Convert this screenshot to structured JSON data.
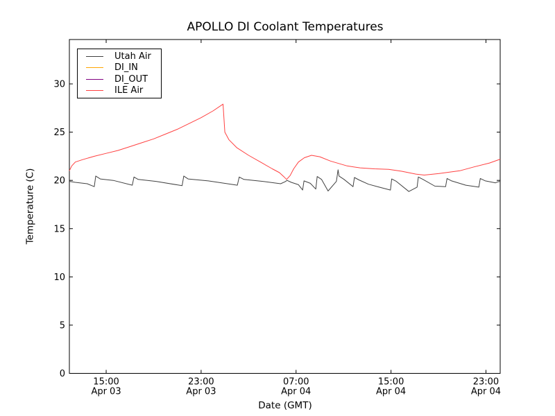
{
  "chart_data": {
    "type": "line",
    "title": "APOLLO DI Coolant Temperatures",
    "xlabel": "Date (GMT)",
    "ylabel": "Temperature (C)",
    "grid": false,
    "legend_position": "upper left",
    "x_unit": "hours since Apr 03 00:00 GMT",
    "x_range": [
      11.9,
      48.2
    ],
    "ylim": [
      0,
      34.6
    ],
    "yticks": [
      0,
      5,
      10,
      15,
      20,
      25,
      30
    ],
    "xticks": [
      {
        "hour": 15,
        "time": "15:00",
        "date": "Apr 03"
      },
      {
        "hour": 23,
        "time": "23:00",
        "date": "Apr 03"
      },
      {
        "hour": 31,
        "time": "07:00",
        "date": "Apr 04"
      },
      {
        "hour": 39,
        "time": "15:00",
        "date": "Apr 04"
      },
      {
        "hour": 47,
        "time": "23:00",
        "date": "Apr 04"
      }
    ],
    "series": [
      {
        "name": "Utah Air",
        "color": "#404040",
        "points": [
          [
            11.9,
            19.9
          ],
          [
            12.4,
            19.8
          ],
          [
            13.4,
            19.65
          ],
          [
            14.0,
            19.35
          ],
          [
            14.12,
            20.45
          ],
          [
            14.5,
            20.15
          ],
          [
            15.6,
            20.0
          ],
          [
            17.2,
            19.5
          ],
          [
            17.34,
            20.35
          ],
          [
            17.7,
            20.1
          ],
          [
            19.2,
            19.9
          ],
          [
            21.4,
            19.45
          ],
          [
            21.54,
            20.45
          ],
          [
            21.9,
            20.15
          ],
          [
            23.6,
            19.95
          ],
          [
            26.05,
            19.5
          ],
          [
            26.21,
            20.35
          ],
          [
            26.6,
            20.1
          ],
          [
            28.2,
            19.9
          ],
          [
            29.7,
            19.65
          ],
          [
            30.05,
            19.85
          ],
          [
            30.25,
            20.0
          ],
          [
            30.6,
            19.8
          ],
          [
            31.2,
            19.55
          ],
          [
            31.55,
            19.0
          ],
          [
            31.67,
            19.95
          ],
          [
            32.2,
            19.7
          ],
          [
            32.66,
            19.1
          ],
          [
            32.78,
            20.4
          ],
          [
            33.15,
            20.1
          ],
          [
            33.7,
            18.9
          ],
          [
            34.4,
            19.9
          ],
          [
            34.54,
            21.1
          ],
          [
            34.62,
            20.45
          ],
          [
            35.05,
            20.1
          ],
          [
            35.8,
            19.35
          ],
          [
            35.92,
            20.3
          ],
          [
            36.3,
            20.05
          ],
          [
            37.1,
            19.6
          ],
          [
            38.0,
            19.3
          ],
          [
            38.95,
            19.0
          ],
          [
            39.06,
            20.15
          ],
          [
            39.45,
            19.9
          ],
          [
            40.5,
            18.85
          ],
          [
            41.2,
            19.3
          ],
          [
            41.3,
            20.35
          ],
          [
            41.7,
            20.1
          ],
          [
            42.7,
            19.4
          ],
          [
            43.6,
            19.35
          ],
          [
            43.72,
            20.2
          ],
          [
            44.1,
            19.95
          ],
          [
            45.3,
            19.5
          ],
          [
            46.4,
            19.3
          ],
          [
            46.52,
            20.2
          ],
          [
            46.95,
            19.95
          ],
          [
            47.8,
            19.75
          ],
          [
            48.0,
            19.85
          ],
          [
            48.2,
            19.9
          ]
        ]
      },
      {
        "name": "DI_IN",
        "color": "#ffa500",
        "points": []
      },
      {
        "name": "DI_OUT",
        "color": "#800080",
        "points": []
      },
      {
        "name": "ILE Air",
        "color": "#ff4040",
        "points": [
          [
            11.9,
            21.0
          ],
          [
            12.1,
            21.5
          ],
          [
            12.4,
            21.9
          ],
          [
            13.0,
            22.15
          ],
          [
            14.0,
            22.5
          ],
          [
            15.0,
            22.8
          ],
          [
            16.0,
            23.1
          ],
          [
            17.0,
            23.5
          ],
          [
            18.0,
            23.9
          ],
          [
            19.0,
            24.3
          ],
          [
            20.0,
            24.8
          ],
          [
            21.0,
            25.3
          ],
          [
            22.0,
            25.9
          ],
          [
            23.0,
            26.5
          ],
          [
            24.0,
            27.2
          ],
          [
            24.85,
            27.9
          ],
          [
            25.0,
            25.0
          ],
          [
            25.35,
            24.2
          ],
          [
            26.0,
            23.4
          ],
          [
            27.0,
            22.6
          ],
          [
            28.0,
            21.9
          ],
          [
            29.0,
            21.2
          ],
          [
            29.6,
            20.8
          ],
          [
            30.0,
            20.35
          ],
          [
            30.2,
            20.1
          ],
          [
            30.5,
            20.5
          ],
          [
            30.8,
            21.2
          ],
          [
            31.2,
            21.9
          ],
          [
            31.7,
            22.35
          ],
          [
            32.3,
            22.6
          ],
          [
            33.0,
            22.45
          ],
          [
            33.9,
            22.0
          ],
          [
            35.3,
            21.5
          ],
          [
            36.4,
            21.3
          ],
          [
            37.6,
            21.2
          ],
          [
            38.8,
            21.15
          ],
          [
            39.9,
            20.95
          ],
          [
            41.1,
            20.65
          ],
          [
            41.8,
            20.55
          ],
          [
            43.0,
            20.7
          ],
          [
            44.8,
            21.0
          ],
          [
            46.0,
            21.4
          ],
          [
            47.3,
            21.8
          ],
          [
            48.2,
            22.2
          ]
        ]
      }
    ]
  }
}
